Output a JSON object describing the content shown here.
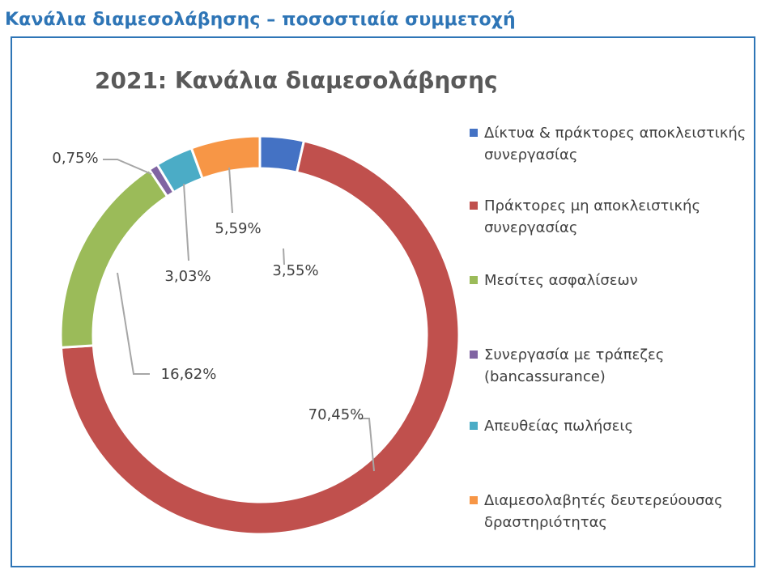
{
  "page": {
    "heading": "Κανάλια διαμεσολάβησης – ποσοστιαία συμμετοχή"
  },
  "chart_data": {
    "type": "pie",
    "variant": "donut",
    "title": "2021: Κανάλια διαμεσολάβησης",
    "legend_position": "right",
    "slices": [
      {
        "name": "Δίκτυα & πράκτορες αποκλειστικής συνεργασίας",
        "value": 3.55,
        "label": "3,55%",
        "color": "#4472c4"
      },
      {
        "name": "Πράκτορες μη αποκλειστικής συνεργασίας",
        "value": 70.45,
        "label": "70,45%",
        "color": "#c0504d"
      },
      {
        "name": "Μεσίτες ασφαλίσεων",
        "value": 16.62,
        "label": "16,62%",
        "color": "#9bbb59"
      },
      {
        "name": "Συνεργασία με τράπεζες (bancassurance)",
        "value": 0.75,
        "label": "0,75%",
        "color": "#8064a2"
      },
      {
        "name": "Απευθείας πωλήσεις",
        "value": 3.03,
        "label": "3,03%",
        "color": "#4bacc6"
      },
      {
        "name": "Διαμεσολαβητές δευτερεύουσας δραστηριότητας",
        "value": 5.59,
        "label": "5,59%",
        "color": "#f79646"
      }
    ]
  }
}
